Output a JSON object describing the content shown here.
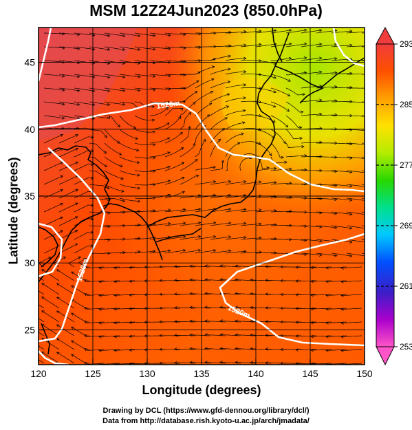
{
  "title": "MSM 12Z24Jun2023 (850.0hPa)",
  "xaxis": {
    "label": "Longitude (degrees)",
    "range": [
      120,
      150
    ],
    "ticks": [
      120,
      125,
      130,
      135,
      140,
      145,
      150
    ]
  },
  "yaxis": {
    "label": "Latitude  (degrees)",
    "range": [
      22.4,
      47.6
    ],
    "ticks": [
      25,
      30,
      35,
      40,
      45
    ]
  },
  "colorbar": {
    "ticks": [
      293,
      285,
      277,
      269,
      261,
      253
    ],
    "range": [
      253,
      293
    ],
    "colors": [
      "#ff55c8",
      "#aa00cc",
      "#3c1ec8",
      "#0050ff",
      "#00c8ff",
      "#00e08c",
      "#28d700",
      "#b4ec00",
      "#ffe100",
      "#ffa000",
      "#ff5000",
      "#f03c3c"
    ]
  },
  "contours": [
    {
      "label": "1520m"
    },
    {
      "label": "1520m"
    },
    {
      "label": "1520m"
    }
  ],
  "credits": {
    "line1": "Drawing by DCL (https://www.gfd-dennou.org/library/dcl/)",
    "line2": "Data from http://database.rish.kyoto-u.ac.jp/arch/jmadata/"
  },
  "colors": {
    "contour": "#ffffff",
    "grid": "#000000",
    "coast": "#000000"
  }
}
